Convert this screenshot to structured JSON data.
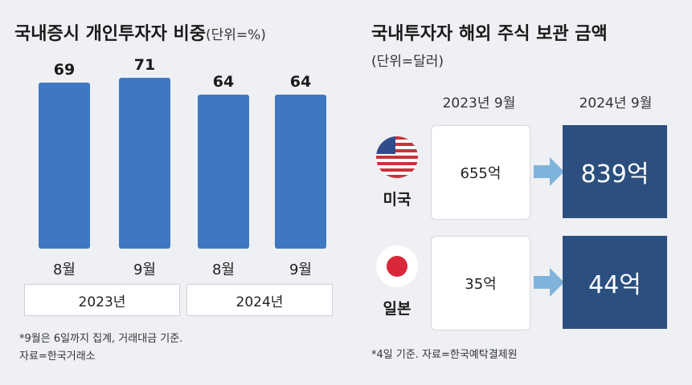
{
  "left_panel": {
    "title": "국내증시 개인투자자 비중",
    "unit": "(단위=%)",
    "years": [
      "2023년",
      "2024년"
    ],
    "notes": [
      "*9월은 6일까지 집계, 거래대금 기준.",
      "자료=한국거래소"
    ]
  },
  "right_panel": {
    "title": "국내투자자 해외 주식 보관 금액",
    "unit": "(단위=달러)",
    "columns": [
      "2023년 9월",
      "2024년 9월"
    ],
    "rows": [
      {
        "country": "미국",
        "flag": "us-flag",
        "v2023": "655억",
        "v2024": "839억"
      },
      {
        "country": "일본",
        "flag": "japan-flag",
        "v2023": "35억",
        "v2024": "44억"
      }
    ],
    "note": "*4일 기준. 자료=한국예탁결제원"
  },
  "chart_data": [
    {
      "type": "bar",
      "title": "국내증시 개인투자자 비중",
      "unit": "(단위=%)",
      "categories": [
        "8월",
        "9월",
        "8월",
        "9월"
      ],
      "groups": [
        "2023년",
        "2023년",
        "2024년",
        "2024년"
      ],
      "values": [
        69,
        71,
        64,
        64
      ],
      "ylim": [
        0,
        80
      ],
      "color": "#3f78c0"
    },
    {
      "type": "table",
      "title": "국내투자자 해외 주식 보관 금액",
      "unit": "(단위=달러)",
      "columns": [
        "2023년 9월",
        "2024년 9월"
      ],
      "rows": [
        "미국",
        "일본"
      ],
      "values": [
        [
          "655억",
          "839억"
        ],
        [
          "35억",
          "44억"
        ]
      ]
    }
  ],
  "colors": {
    "bar": "#3f78c0",
    "dark_box": "#2b4f7e",
    "arrow": "#7fb3dc",
    "background": "#eef0f3"
  }
}
